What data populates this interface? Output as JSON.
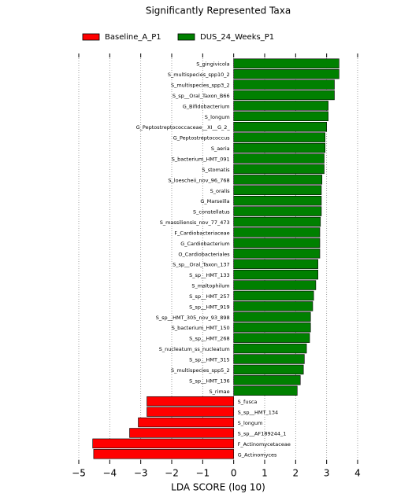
{
  "chart_data": {
    "type": "bar",
    "orientation": "horizontal",
    "title": "Significantly Represented Taxa",
    "xlabel": "LDA SCORE (log 10)",
    "categories": [
      "S_gingivicola",
      "S_multispecies_spp10_2",
      "S_multispecies_spp3_2",
      "S_sp__Oral_Taxon_B66",
      "G_Bifidobacterium",
      "S_longum",
      "G_Peptostreptococcaceae__XI__G_2_",
      "G_Peptostreptococcus",
      "S_aeria",
      "S_bacterium_HMT_091",
      "S_stomatis",
      "S_loescheii_nov_96_768",
      "S_oralis",
      "G_Marseilla",
      "S_constellatus",
      "S_massiliensis_nov_77_473",
      "F_Cardiobacteriaceae",
      "G_Cardiobacterium",
      "O_Cardiobacteriales",
      "S_sp__Oral_Taxon_137",
      "S_sp__HMT_133",
      "S_maltophilum",
      "S_sp__HMT_257",
      "S_sp__HMT_919",
      "S_sp__HMT_305_nov_93_898",
      "S_bacterium_HMT_150",
      "S_sp__HMT_268",
      "S_nucleatum_ss_nucleatum",
      "S_sp__HMT_315",
      "S_multispecies_spp5_2",
      "S_sp__HMT_136",
      "S_rimae",
      "S_fusca",
      "S_sp__HMT_134",
      "S_longum",
      "S_sp__AF189244_1",
      "F_Actinomycetaceae",
      "G_Actinomyces"
    ],
    "series": [
      {
        "name": "Baseline_A_P1",
        "color": "#ff0000",
        "values": [
          null,
          null,
          null,
          null,
          null,
          null,
          null,
          null,
          null,
          null,
          null,
          null,
          null,
          null,
          null,
          null,
          null,
          null,
          null,
          null,
          null,
          null,
          null,
          null,
          null,
          null,
          null,
          null,
          null,
          null,
          null,
          null,
          -2.8,
          -2.8,
          -3.08,
          -3.36,
          -4.55,
          -4.52
        ]
      },
      {
        "name": "DUS_24_Weeks_P1",
        "color": "#008000",
        "values": [
          3.4,
          3.4,
          3.25,
          3.25,
          3.05,
          3.05,
          3.0,
          2.95,
          2.95,
          2.92,
          2.92,
          2.85,
          2.83,
          2.83,
          2.83,
          2.8,
          2.78,
          2.78,
          2.78,
          2.72,
          2.72,
          2.65,
          2.58,
          2.55,
          2.48,
          2.48,
          2.45,
          2.35,
          2.28,
          2.25,
          2.15,
          2.05,
          null,
          null,
          null,
          null,
          null,
          null
        ]
      }
    ],
    "xlim": [
      -5,
      4
    ],
    "xticks": [
      {
        "value": -5,
        "label": "−5"
      },
      {
        "value": -4,
        "label": "−4"
      },
      {
        "value": -3,
        "label": "−3"
      },
      {
        "value": -2,
        "label": "−2"
      },
      {
        "value": -1,
        "label": "−1"
      },
      0,
      1,
      2,
      3,
      4
    ],
    "grid": true
  }
}
